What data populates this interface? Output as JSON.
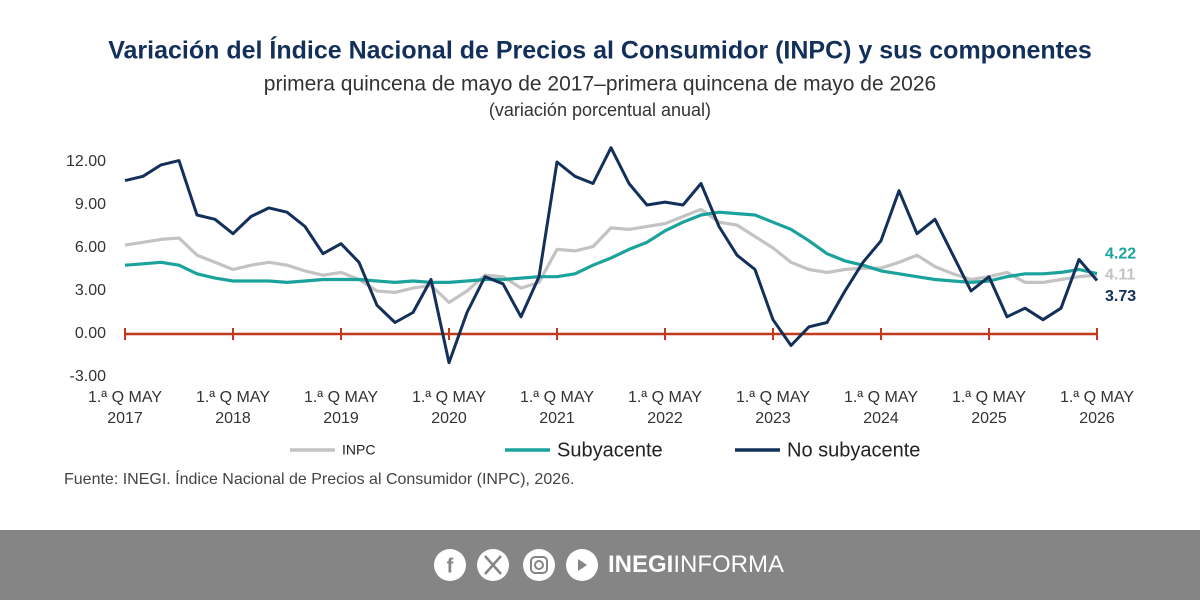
{
  "chart_data": {
    "type": "line",
    "title": "Variación del Índice Nacional de Precios al Consumidor (INPC) y sus componentes",
    "subtitle": "primera quincena de mayo de 2017–primera quincena de mayo de 2026",
    "note": "(variación porcentual anual)",
    "categories": [
      [
        "1.ª Q MAY",
        "2017"
      ],
      null,
      null,
      null,
      null,
      null,
      [
        "1.ª Q MAY",
        "2018"
      ],
      null,
      null,
      null,
      null,
      null,
      [
        "1.ª Q MAY",
        "2019"
      ],
      null,
      null,
      null,
      null,
      null,
      [
        "1.ª Q MAY",
        "2020"
      ],
      null,
      null,
      null,
      null,
      null,
      [
        "1.ª Q MAY",
        "2021"
      ],
      null,
      null,
      null,
      null,
      null,
      [
        "1.ª Q MAY",
        "2022"
      ],
      null,
      null,
      null,
      null,
      null,
      [
        "1.ª Q MAY",
        "2023"
      ],
      null,
      null,
      null,
      null,
      null,
      [
        "1.ª Q MAY",
        "2024"
      ],
      null,
      null,
      null,
      null,
      null,
      [
        "1.ª Q MAY",
        "2025"
      ],
      null,
      null,
      null,
      null,
      null,
      [
        "1.ª Q MAY",
        "2026"
      ]
    ],
    "series": [
      {
        "name": "INPC",
        "color": "#c3c3c3",
        "values": [
          6.2,
          6.4,
          6.6,
          6.7,
          5.5,
          5.0,
          4.5,
          4.8,
          5.0,
          4.8,
          4.4,
          4.1,
          4.3,
          3.8,
          3.0,
          2.9,
          3.2,
          3.4,
          2.2,
          3.0,
          4.1,
          4.0,
          3.2,
          3.6,
          5.9,
          5.8,
          6.1,
          7.4,
          7.3,
          7.5,
          7.7,
          8.2,
          8.7,
          7.8,
          7.6,
          6.8,
          6.0,
          5.0,
          4.5,
          4.3,
          4.5,
          4.6,
          4.6,
          5.0,
          5.5,
          4.7,
          4.2,
          3.8,
          4.0,
          4.3,
          3.6,
          3.6,
          3.8,
          4.0,
          4.11
        ]
      },
      {
        "name": "Subyacente",
        "color": "#1ba39b",
        "values": [
          4.8,
          4.9,
          5.0,
          4.8,
          4.2,
          3.9,
          3.7,
          3.7,
          3.7,
          3.6,
          3.7,
          3.8,
          3.8,
          3.8,
          3.7,
          3.6,
          3.7,
          3.6,
          3.6,
          3.7,
          3.8,
          3.8,
          3.9,
          4.0,
          4.0,
          4.2,
          4.8,
          5.3,
          5.9,
          6.4,
          7.2,
          7.8,
          8.3,
          8.5,
          8.4,
          8.3,
          7.8,
          7.3,
          6.5,
          5.6,
          5.1,
          4.8,
          4.4,
          4.2,
          4.0,
          3.8,
          3.7,
          3.6,
          3.7,
          4.0,
          4.2,
          4.2,
          4.3,
          4.5,
          4.22
        ]
      },
      {
        "name": "No subyacente",
        "color": "#12305a",
        "values": [
          10.7,
          11.0,
          11.8,
          12.1,
          8.3,
          8.0,
          7.0,
          8.2,
          8.8,
          8.5,
          7.5,
          5.6,
          6.3,
          5.0,
          2.0,
          0.8,
          1.5,
          3.8,
          -2.0,
          1.5,
          4.0,
          3.5,
          1.2,
          4.0,
          12.0,
          11.0,
          10.5,
          13.0,
          10.5,
          9.0,
          9.2,
          9.0,
          10.5,
          7.5,
          5.5,
          4.5,
          1.0,
          -0.8,
          0.5,
          0.8,
          3.0,
          5.0,
          6.5,
          10.0,
          7.0,
          8.0,
          5.5,
          3.0,
          4.0,
          1.2,
          1.8,
          1.0,
          1.8,
          5.2,
          3.73
        ]
      }
    ],
    "ylim": [
      -3,
      13.5
    ],
    "yticks": [
      {
        "value": -3,
        "label": "-3.00"
      },
      {
        "value": 0,
        "label": "0.00"
      },
      {
        "value": 3,
        "label": "3.00"
      },
      {
        "value": 6,
        "label": "6.00"
      },
      {
        "value": 9,
        "label": "9.00"
      },
      {
        "value": 12,
        "label": "12.00"
      }
    ],
    "source": "Fuente: INEGI. Índice Nacional de Precios al Consumidor (INPC), 2026."
  },
  "footer": {
    "brand_bold": "INEGI",
    "brand": "INFORMA"
  }
}
